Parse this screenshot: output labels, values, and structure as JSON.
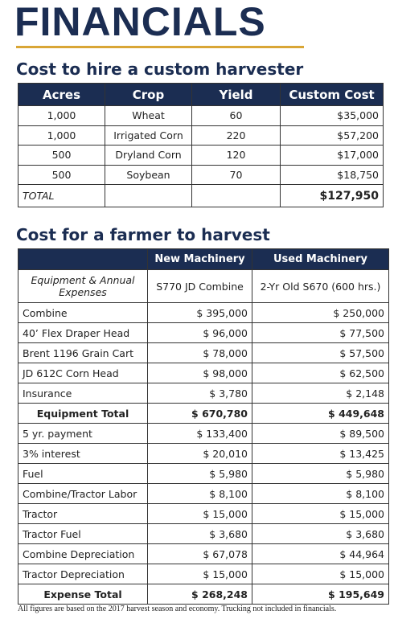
{
  "title": "FINANCIALS",
  "custom_harvester": {
    "heading": "Cost to hire a custom harvester",
    "columns": [
      "Acres",
      "Crop",
      "Yield",
      "Custom Cost"
    ],
    "rows": [
      [
        "1,000",
        "Wheat",
        "60",
        "$35,000"
      ],
      [
        "1,000",
        "Irrigated Corn",
        "220",
        "$57,200"
      ],
      [
        "500",
        "Dryland Corn",
        "120",
        "$17,000"
      ],
      [
        "500",
        "Soybean",
        "70",
        "$18,750"
      ]
    ],
    "total": {
      "label": "TOTAL",
      "value": "$127,950"
    }
  },
  "farmer_harvest": {
    "heading": "Cost for a farmer to harvest",
    "columns": [
      "New Machinery",
      "Used Machinery"
    ],
    "subheader": [
      "Equipment & Annual Expenses",
      "S770 JD Combine",
      "2-Yr Old S670 (600 hrs.)"
    ],
    "rows": [
      {
        "label": "Combine",
        "new": "$ 395,000",
        "used": "$ 250,000"
      },
      {
        "label": "40’ Flex Draper Head",
        "new": "$ 96,000",
        "used": "$ 77,500"
      },
      {
        "label": "Brent 1196 Grain Cart",
        "new": "$ 78,000",
        "used": "$ 57,500"
      },
      {
        "label": "JD 612C Corn Head",
        "new": "$ 98,000",
        "used": "$ 62,500"
      },
      {
        "label": "Insurance",
        "new": "$ 3,780",
        "used": "$ 2,148"
      },
      {
        "label": "Equipment Total",
        "new": "$ 670,780",
        "used": "$ 449,648",
        "bold": true
      },
      {
        "label": "5 yr. payment",
        "new": "$ 133,400",
        "used": "$ 89,500"
      },
      {
        "label": "3% interest",
        "new": "$ 20,010",
        "used": "$ 13,425"
      },
      {
        "label": "Fuel",
        "new": "$ 5,980",
        "used": "$ 5,980"
      },
      {
        "label": "Combine/Tractor Labor",
        "new": "$ 8,100",
        "used": "$ 8,100"
      },
      {
        "label": "Tractor",
        "new": "$ 15,000",
        "used": "$ 15,000"
      },
      {
        "label": "Tractor Fuel",
        "new": "$ 3,680",
        "used": "$ 3,680"
      },
      {
        "label": "Combine Depreciation",
        "new": "$ 67,078",
        "used": "$ 44,964"
      },
      {
        "label": "Tractor Depreciation",
        "new": "$ 15,000",
        "used": "$ 15,000"
      },
      {
        "label": "Expense Total",
        "new": "$ 268,248",
        "used": "$ 195,649",
        "bold": true
      }
    ]
  },
  "footnote": "All figures are based on the 2017 harvest season and economy. Trucking not included in financials."
}
